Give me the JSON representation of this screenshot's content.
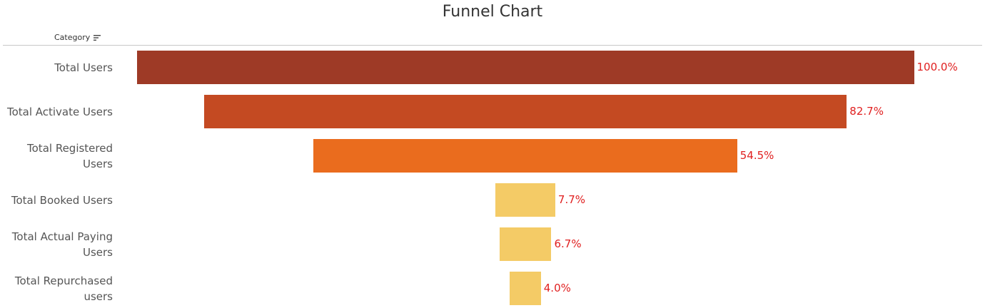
{
  "title": "Funnel Chart",
  "header": {
    "category_label": "Category",
    "sort_icon": "sort-descending-icon"
  },
  "chart_data": {
    "type": "bar",
    "orientation": "horizontal-funnel",
    "title": "Funnel Chart",
    "categories": [
      "Total Users",
      "Total Activate Users",
      "Total Registered Users",
      "Total Booked Users",
      "Total Actual Paying Users",
      "Total Repurchased users"
    ],
    "display_labels": [
      [
        "Total Users"
      ],
      [
        "Total Activate Users"
      ],
      [
        "Total Registered",
        "Users"
      ],
      [
        "Total Booked Users"
      ],
      [
        "Total Actual Paying",
        "Users"
      ],
      [
        "Total Repurchased",
        "users"
      ]
    ],
    "values": [
      100.0,
      82.7,
      54.5,
      7.7,
      6.7,
      4.0
    ],
    "value_labels": [
      "100.0%",
      "82.7%",
      "54.5%",
      "7.7%",
      "6.7%",
      "4.0%"
    ],
    "colors": [
      "#9e3a26",
      "#c44a22",
      "#ea6c1e",
      "#f4cb66",
      "#f4cb66",
      "#f4cb66"
    ],
    "label_color": "#e02020",
    "grid": false
  }
}
